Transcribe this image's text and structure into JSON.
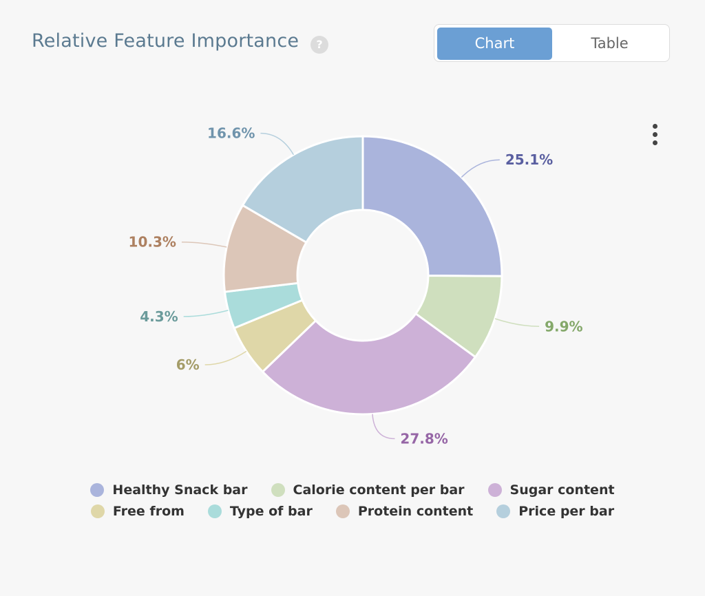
{
  "header": {
    "title": "Relative Feature Importance",
    "help_glyph": "?"
  },
  "view_toggle": {
    "chart_label": "Chart",
    "table_label": "Table",
    "active": "Chart"
  },
  "chart_data": {
    "type": "pie",
    "donut": true,
    "title": "Relative Feature Importance",
    "legend_position": "bottom",
    "slices": [
      {
        "name": "Healthy Snack bar",
        "value": 25.1,
        "label": "25.1%",
        "color": "#aab4dc",
        "label_color": "#5a5fa0"
      },
      {
        "name": "Calorie content per bar",
        "value": 9.9,
        "label": "9.9%",
        "color": "#cfdfbe",
        "label_color": "#84a86a"
      },
      {
        "name": "Sugar content",
        "value": 27.8,
        "label": "27.8%",
        "color": "#cdb1d7",
        "label_color": "#9666a6"
      },
      {
        "name": "Free from",
        "value": 6,
        "label": "6%",
        "color": "#dfd7a8",
        "label_color": "#a49c68"
      },
      {
        "name": "Type of bar",
        "value": 4.3,
        "label": "4.3%",
        "color": "#aadcdb",
        "label_color": "#6b9b9b"
      },
      {
        "name": "Protein content",
        "value": 10.3,
        "label": "10.3%",
        "color": "#dcc6b8",
        "label_color": "#ad8060"
      },
      {
        "name": "Price per bar",
        "value": 16.6,
        "label": "16.6%",
        "color": "#b5cfdd",
        "label_color": "#7094ac"
      }
    ]
  },
  "legend": {
    "rows": [
      [
        {
          "label": "Healthy Snack bar",
          "color": "#aab4dc"
        },
        {
          "label": "Calorie content per bar",
          "color": "#cfdfbe"
        },
        {
          "label": "Sugar content",
          "color": "#cdb1d7"
        }
      ],
      [
        {
          "label": "Free from",
          "color": "#dfd7a8"
        },
        {
          "label": "Type of bar",
          "color": "#aadcdb"
        },
        {
          "label": "Protein content",
          "color": "#dcc6b8"
        },
        {
          "label": "Price per bar",
          "color": "#b5cfdd"
        }
      ]
    ]
  },
  "icons": {
    "menu": "more-vertical-icon",
    "help": "help-icon"
  }
}
